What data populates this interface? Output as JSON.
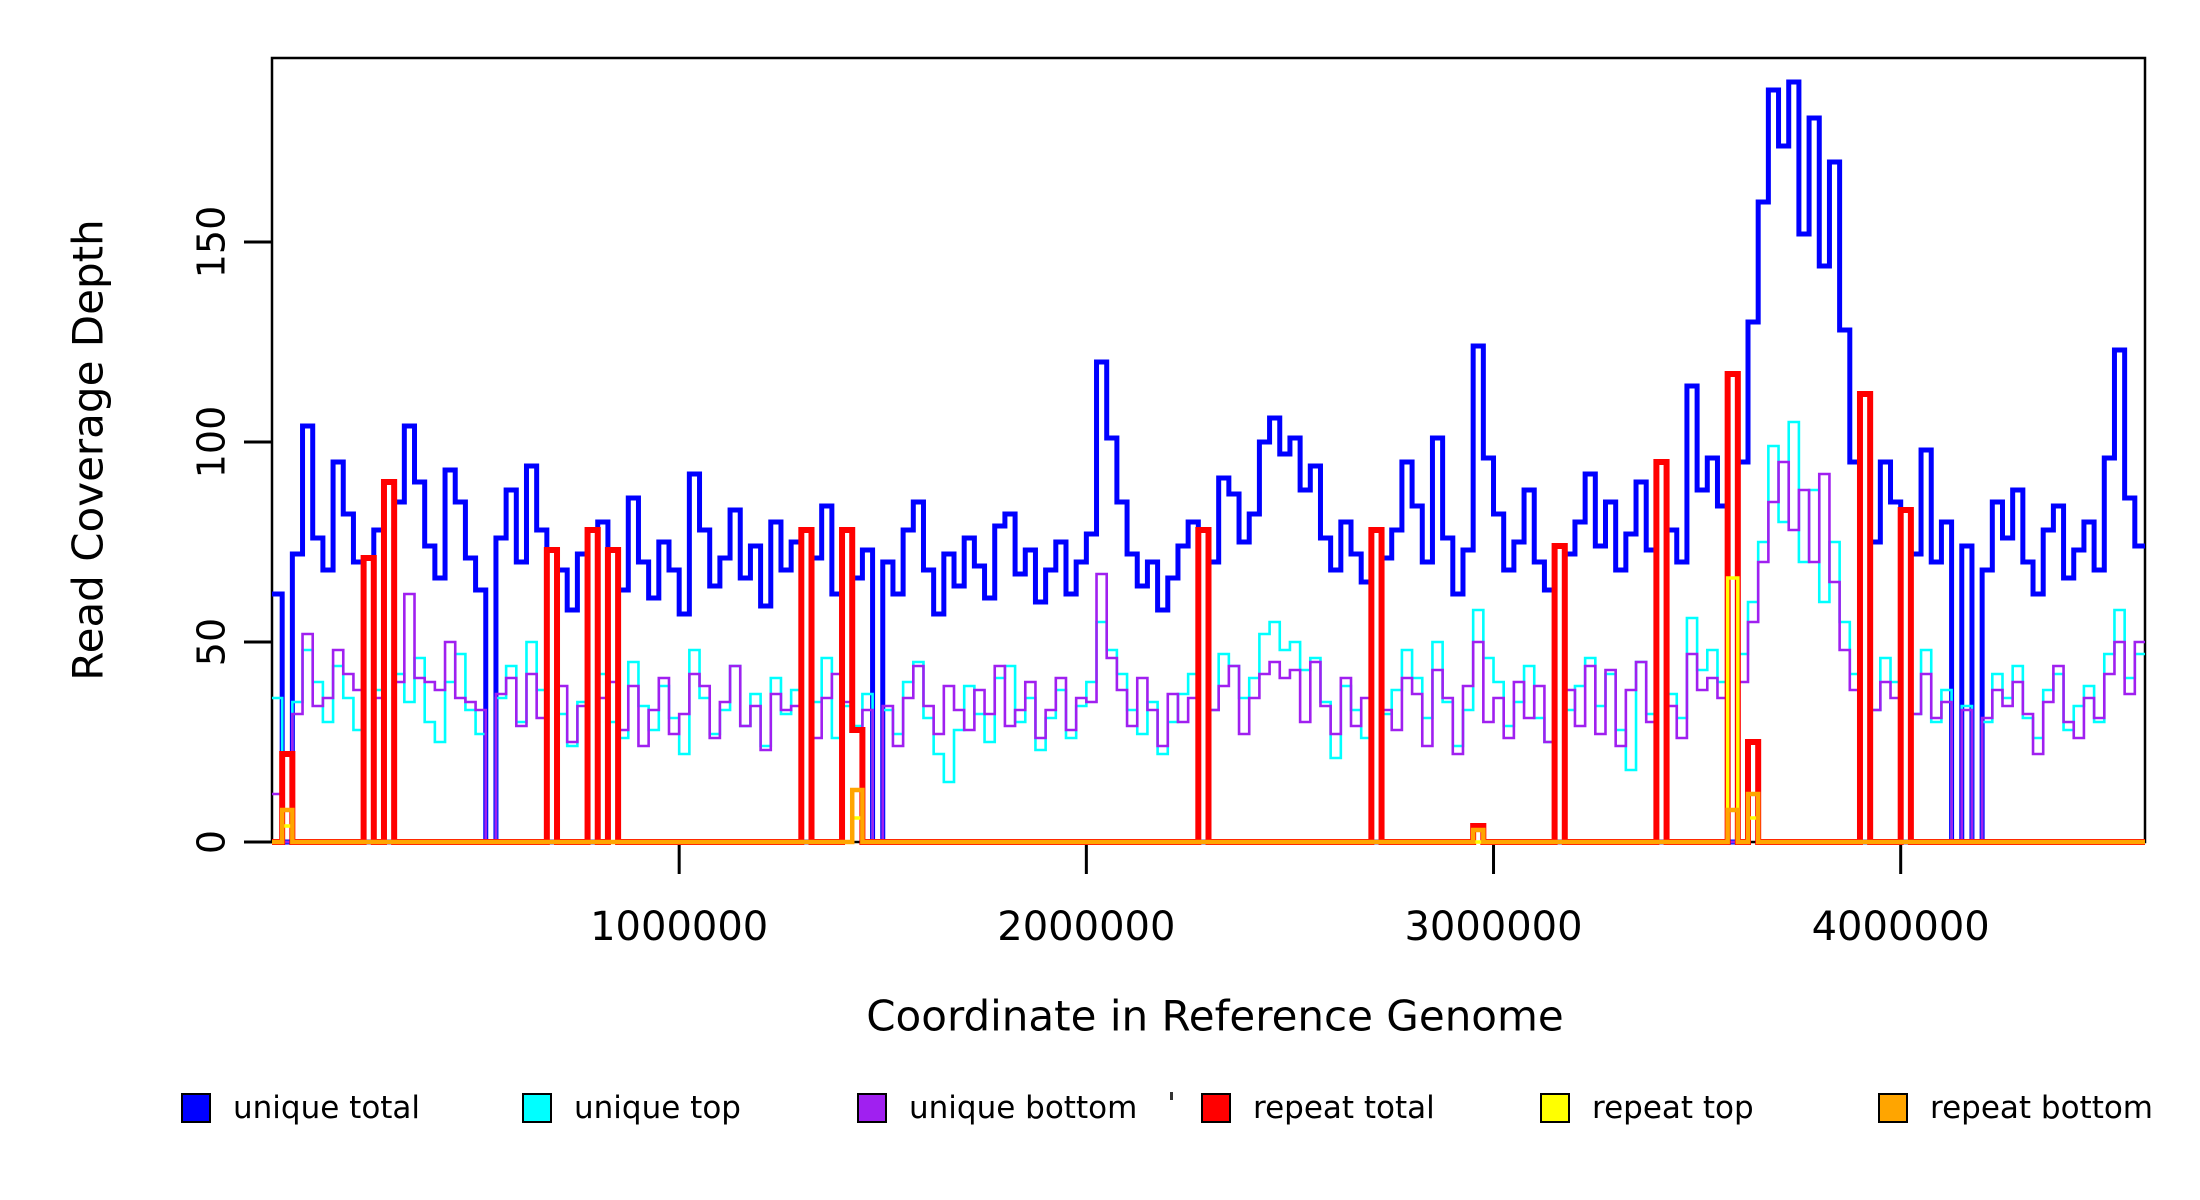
{
  "chart_data": {
    "type": "line",
    "subtype": "step-post-coverage",
    "xlabel": "Coordinate in Reference Genome",
    "ylabel": "Read Coverage Depth",
    "xlim": [
      0,
      4600000
    ],
    "ylim": [
      0,
      196
    ],
    "bin_size": 25000,
    "n_bins": 184,
    "grid": false,
    "legend_position": "bottom",
    "x_ticks": [
      {
        "value": 1000000,
        "label": "1000000"
      },
      {
        "value": 2000000,
        "label": "2000000"
      },
      {
        "value": 3000000,
        "label": "3000000"
      },
      {
        "value": 4000000,
        "label": "4000000"
      }
    ],
    "y_ticks": [
      {
        "value": 0,
        "label": "0"
      },
      {
        "value": 50,
        "label": "50"
      },
      {
        "value": 100,
        "label": "100"
      },
      {
        "value": 150,
        "label": "150"
      }
    ],
    "series": [
      {
        "name": "unique total",
        "color": "#0000FF",
        "values": [
          62,
          0,
          72,
          104,
          76,
          68,
          95,
          82,
          70,
          0,
          78,
          0,
          85,
          104,
          90,
          74,
          66,
          93,
          85,
          71,
          63,
          0,
          76,
          88,
          70,
          94,
          78,
          0,
          68,
          58,
          72,
          0,
          80,
          73,
          63,
          86,
          70,
          61,
          75,
          68,
          57,
          92,
          78,
          64,
          71,
          83,
          66,
          74,
          59,
          80,
          68,
          75,
          0,
          71,
          84,
          62,
          78,
          66,
          73,
          0,
          70,
          62,
          78,
          85,
          68,
          57,
          72,
          64,
          76,
          69,
          61,
          79,
          82,
          67,
          73,
          60,
          68,
          75,
          62,
          70,
          77,
          120,
          101,
          85,
          72,
          64,
          70,
          58,
          66,
          74,
          80,
          0,
          70,
          91,
          87,
          75,
          82,
          100,
          106,
          97,
          101,
          88,
          94,
          76,
          68,
          80,
          72,
          65,
          0,
          71,
          78,
          95,
          84,
          70,
          101,
          76,
          62,
          73,
          124,
          96,
          82,
          68,
          75,
          88,
          70,
          63,
          0,
          72,
          80,
          92,
          74,
          85,
          68,
          77,
          90,
          73,
          0,
          78,
          70,
          114,
          88,
          96,
          84,
          0,
          95,
          130,
          160,
          188,
          174,
          190,
          152,
          181,
          144,
          170,
          128,
          95,
          0,
          75,
          95,
          85,
          0,
          72,
          98,
          70,
          80,
          0,
          74,
          0,
          68,
          85,
          76,
          88,
          70,
          62,
          78,
          84,
          66,
          73,
          80,
          68,
          96,
          123,
          86,
          74
        ]
      },
      {
        "name": "unique top",
        "color": "#00FFFF",
        "values": [
          36,
          0,
          35,
          48,
          40,
          30,
          44,
          36,
          28,
          0,
          38,
          0,
          42,
          35,
          46,
          30,
          25,
          40,
          47,
          33,
          27,
          0,
          36,
          44,
          30,
          50,
          38,
          0,
          32,
          24,
          35,
          0,
          42,
          30,
          26,
          45,
          34,
          28,
          39,
          31,
          22,
          48,
          36,
          27,
          33,
          44,
          29,
          37,
          24,
          41,
          32,
          38,
          0,
          35,
          46,
          26,
          34,
          29,
          37,
          0,
          33,
          27,
          40,
          45,
          31,
          22,
          15,
          28,
          39,
          32,
          25,
          41,
          44,
          30,
          36,
          23,
          31,
          38,
          26,
          34,
          40,
          55,
          48,
          42,
          33,
          27,
          35,
          22,
          30,
          37,
          42,
          0,
          33,
          47,
          44,
          36,
          41,
          52,
          55,
          48,
          50,
          43,
          46,
          35,
          21,
          39,
          33,
          26,
          0,
          32,
          38,
          48,
          41,
          31,
          50,
          35,
          24,
          33,
          58,
          46,
          40,
          29,
          35,
          44,
          31,
          25,
          0,
          33,
          39,
          46,
          34,
          42,
          28,
          18,
          45,
          32,
          0,
          37,
          31,
          56,
          43,
          48,
          40,
          0,
          47,
          60,
          75,
          99,
          80,
          105,
          70,
          88,
          60,
          75,
          55,
          42,
          0,
          33,
          46,
          40,
          0,
          32,
          48,
          30,
          38,
          0,
          34,
          0,
          30,
          42,
          36,
          44,
          31,
          26,
          38,
          42,
          28,
          34,
          39,
          30,
          47,
          58,
          41,
          47
        ]
      },
      {
        "name": "unique bottom",
        "color": "#A020F0",
        "values": [
          12,
          0,
          32,
          52,
          34,
          36,
          48,
          42,
          38,
          0,
          36,
          0,
          40,
          62,
          41,
          40,
          38,
          50,
          36,
          35,
          33,
          0,
          37,
          41,
          29,
          42,
          31,
          0,
          39,
          25,
          34,
          0,
          36,
          40,
          28,
          39,
          24,
          33,
          41,
          27,
          32,
          42,
          39,
          26,
          35,
          44,
          29,
          34,
          23,
          37,
          33,
          34,
          0,
          26,
          36,
          42,
          35,
          28,
          33,
          0,
          34,
          24,
          36,
          44,
          34,
          27,
          39,
          33,
          28,
          38,
          32,
          44,
          29,
          33,
          40,
          26,
          33,
          41,
          28,
          36,
          35,
          67,
          46,
          38,
          29,
          41,
          33,
          24,
          37,
          30,
          36,
          0,
          33,
          39,
          44,
          27,
          36,
          42,
          45,
          41,
          43,
          30,
          45,
          34,
          27,
          41,
          29,
          36,
          0,
          33,
          28,
          41,
          37,
          24,
          43,
          36,
          22,
          39,
          50,
          30,
          36,
          26,
          40,
          31,
          39,
          25,
          0,
          38,
          29,
          44,
          27,
          43,
          24,
          38,
          45,
          30,
          0,
          34,
          26,
          47,
          38,
          41,
          36,
          0,
          40,
          55,
          70,
          85,
          95,
          78,
          88,
          70,
          92,
          65,
          48,
          38,
          0,
          33,
          40,
          36,
          0,
          32,
          42,
          31,
          35,
          0,
          33,
          0,
          31,
          38,
          34,
          40,
          32,
          22,
          35,
          44,
          30,
          26,
          36,
          31,
          42,
          50,
          37,
          50
        ]
      },
      {
        "name": "repeat total",
        "color": "#FF0000",
        "baseline": 0,
        "spikes": {
          "1": 22,
          "9": 71,
          "11": 90,
          "27": 73,
          "31": 78,
          "33": 73,
          "52": 78,
          "56": 78,
          "57": 28,
          "91": 78,
          "108": 78,
          "118": 4,
          "126": 74,
          "136": 95,
          "143": 117,
          "145": 25,
          "156": 112,
          "160": 83
        }
      },
      {
        "name": "repeat top",
        "color": "#FFFF00",
        "baseline": 0,
        "spikes": {
          "1": 4,
          "57": 6,
          "143": 66,
          "145": 6
        }
      },
      {
        "name": "repeat bottom",
        "color": "#FFA500",
        "baseline": 0,
        "spikes": {
          "1": 8,
          "57": 13,
          "118": 3,
          "143": 8,
          "145": 12
        }
      }
    ]
  },
  "legend": {
    "items": [
      {
        "label": "unique total",
        "color": "#0000FF"
      },
      {
        "label": "unique top",
        "color": "#00FFFF"
      },
      {
        "label": "unique bottom",
        "color": "#A020F0"
      },
      {
        "label": "repeat total",
        "color": "#FF0000"
      },
      {
        "label": "repeat top",
        "color": "#FFFF00"
      },
      {
        "label": "repeat bottom",
        "color": "#FFA500"
      }
    ]
  }
}
